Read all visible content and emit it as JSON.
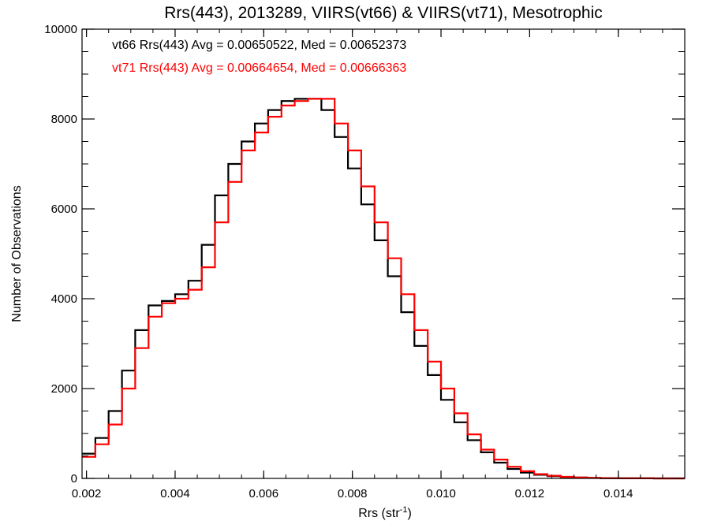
{
  "chart_data": {
    "type": "line",
    "title": "Rrs(443), 2013289, VIIRS(vt66) & VIIRS(vt71), Mesotrophic",
    "xlabel": "Rrs (str",
    "xlabel_sup": "-1",
    "xlabel_suffix": ")",
    "ylabel": "Number of Observations",
    "xlim": [
      0.0019,
      0.0155
    ],
    "ylim": [
      0,
      10000
    ],
    "grid": false,
    "legend_position": "top-left",
    "xticks": [
      0.002,
      0.004,
      0.006,
      0.008,
      0.01,
      0.012,
      0.014
    ],
    "xtick_labels": [
      "0.002",
      "0.004",
      "0.006",
      "0.008",
      "0.010",
      "0.012",
      "0.014"
    ],
    "yticks": [
      0,
      2000,
      4000,
      6000,
      8000,
      10000
    ],
    "ytick_labels": [
      "0",
      "2000",
      "4000",
      "6000",
      "8000",
      "10000"
    ],
    "x": [
      0.0019,
      0.0022,
      0.0025,
      0.0028,
      0.0031,
      0.0034,
      0.0037,
      0.004,
      0.0043,
      0.0046,
      0.0049,
      0.0052,
      0.0055,
      0.0058,
      0.0061,
      0.0064,
      0.0067,
      0.007,
      0.0073,
      0.0076,
      0.0079,
      0.0082,
      0.0085,
      0.0088,
      0.0091,
      0.0094,
      0.0097,
      0.01,
      0.0103,
      0.0106,
      0.0109,
      0.0112,
      0.0115,
      0.0118,
      0.0121,
      0.0124,
      0.0127,
      0.013,
      0.0133,
      0.0136,
      0.0139,
      0.0142,
      0.0145,
      0.0148,
      0.0151,
      0.0155
    ],
    "series": [
      {
        "name": "vt66",
        "color": "#000000",
        "legend_text": "vt66 Rrs(443) Avg = 0.00650522, Med = 0.00652373",
        "values": [
          550,
          900,
          1500,
          2400,
          3300,
          3850,
          3950,
          4100,
          4400,
          5200,
          6300,
          7000,
          7500,
          7900,
          8200,
          8400,
          8450,
          8450,
          8200,
          7600,
          6900,
          6100,
          5300,
          4500,
          3700,
          2950,
          2300,
          1750,
          1250,
          850,
          580,
          350,
          210,
          130,
          80,
          50,
          30,
          20,
          10,
          5,
          3,
          2,
          1,
          0,
          0,
          0
        ]
      },
      {
        "name": "vt71",
        "color": "#ff0000",
        "legend_text": "vt71 Rrs(443) Avg = 0.00664654, Med = 0.00666363",
        "values": [
          480,
          760,
          1200,
          2000,
          2900,
          3600,
          3900,
          4000,
          4200,
          4700,
          5700,
          6600,
          7300,
          7700,
          8050,
          8300,
          8400,
          8450,
          8450,
          7900,
          7300,
          6500,
          5700,
          4900,
          4100,
          3300,
          2600,
          2000,
          1450,
          980,
          640,
          420,
          260,
          160,
          95,
          60,
          35,
          20,
          12,
          6,
          3,
          2,
          1,
          0,
          0,
          0
        ]
      }
    ]
  }
}
